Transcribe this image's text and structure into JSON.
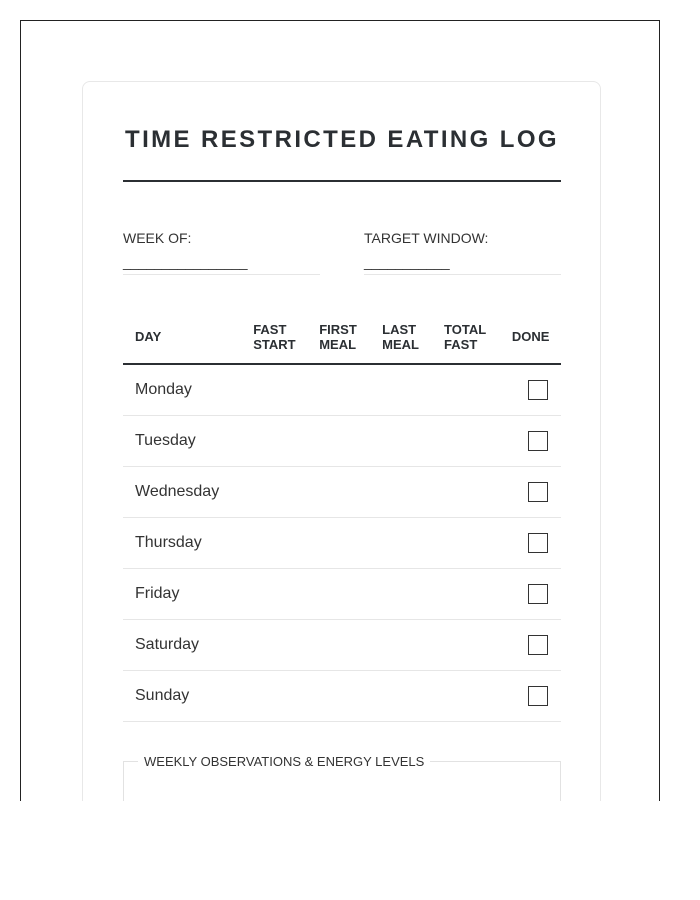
{
  "title": "TIME RESTRICTED EATING LOG",
  "fields": {
    "week_of": {
      "label": "WEEK OF:",
      "value": "________________"
    },
    "target_window": {
      "label": "TARGET WINDOW:",
      "value": "___________"
    }
  },
  "table": {
    "headers": [
      [
        "DAY"
      ],
      [
        "FAST",
        "START"
      ],
      [
        "FIRST",
        "MEAL"
      ],
      [
        "LAST",
        "MEAL"
      ],
      [
        "TOTAL",
        "FAST"
      ],
      [
        "DONE"
      ]
    ],
    "rows": [
      {
        "day": "Monday",
        "done": false
      },
      {
        "day": "Tuesday",
        "done": false
      },
      {
        "day": "Wednesday",
        "done": false
      },
      {
        "day": "Thursday",
        "done": false
      },
      {
        "day": "Friday",
        "done": false
      },
      {
        "day": "Saturday",
        "done": false
      },
      {
        "day": "Sunday",
        "done": false
      }
    ]
  },
  "observations": {
    "legend": "WEEKLY OBSERVATIONS & ENERGY LEVELS"
  }
}
